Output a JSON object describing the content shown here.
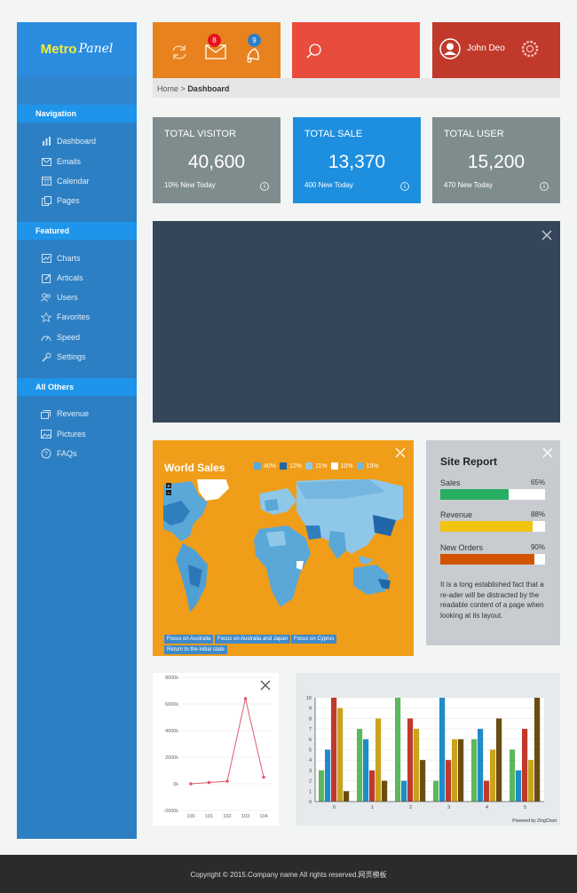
{
  "sidebar": {
    "logo": {
      "part1": "Metro",
      "part2": "Panel"
    },
    "sections": [
      {
        "label": "Navigation",
        "items": [
          {
            "label": "Dashboard",
            "icon": "bar-chart-icon"
          },
          {
            "label": "Emails",
            "icon": "envelope-icon"
          },
          {
            "label": "Calendar",
            "icon": "calendar-icon"
          },
          {
            "label": "Pages",
            "icon": "pages-icon"
          }
        ]
      },
      {
        "label": "Featured",
        "items": [
          {
            "label": "Charts",
            "icon": "chart-icon"
          },
          {
            "label": "Articals",
            "icon": "edit-icon"
          },
          {
            "label": "Users",
            "icon": "users-icon"
          },
          {
            "label": "Favorites",
            "icon": "star-icon"
          },
          {
            "label": "Speed",
            "icon": "speed-icon"
          },
          {
            "label": "Settings",
            "icon": "wrench-icon"
          }
        ]
      },
      {
        "label": "All Others",
        "items": [
          {
            "label": "Revenue",
            "icon": "stack-icon"
          },
          {
            "label": "Pictures",
            "icon": "picture-icon"
          },
          {
            "label": "FAQs",
            "icon": "question-icon"
          }
        ]
      }
    ]
  },
  "topbar": {
    "mail_badge": "8",
    "alert_badge": "9",
    "user_name": "John Deo",
    "colors": {
      "orange": "#e8821f",
      "red": "#e84c3d",
      "darkred": "#c0392b"
    }
  },
  "breadcrumb": {
    "home": "Home",
    "separator": ">",
    "current": "Dashboard"
  },
  "stats": [
    {
      "prefix": "TOTAL",
      "label": "VISITOR",
      "value": "40,600",
      "footer": "10% New Today",
      "color": "#7f8c8d"
    },
    {
      "prefix": "TOTAL",
      "label": "SALE",
      "value": "13,370",
      "footer": "400 New Today",
      "color": "#1e8fdf"
    },
    {
      "prefix": "TOTAL",
      "label": "USER",
      "value": "15,200",
      "footer": "470 New Today",
      "color": "#7f8c8d"
    }
  ],
  "world_sales": {
    "title": "World Sales",
    "legend": [
      "40%",
      "12%",
      "11%",
      "10%",
      "15%"
    ],
    "legend_colors": [
      "#5aa8d8",
      "#2166a8",
      "#8ec7e8",
      "#ffffff",
      "#74b6df"
    ],
    "buttons": [
      "Focus on Australia",
      "Focus on Australia and Japan",
      "Focus on Cyprus",
      "Return to the initial state"
    ]
  },
  "site_report": {
    "title": "Site Report",
    "items": [
      {
        "label": "Sales",
        "percent": "65%",
        "value": 65,
        "color": "#27ae60"
      },
      {
        "label": "Revenue",
        "percent": "88%",
        "value": 88,
        "color": "#f1c40f"
      },
      {
        "label": "New Orders",
        "percent": "90%",
        "value": 90,
        "color": "#d35400"
      }
    ],
    "text": "It is a long established fact that a re-ader will be distracted by the readable content of a page when looking at its layout."
  },
  "chart_data": [
    {
      "type": "line",
      "x": [
        "100",
        "101",
        "102",
        "103",
        "104"
      ],
      "values": [
        0,
        100,
        200,
        6400,
        500
      ],
      "yticks": [
        "8000k",
        "6000k",
        "4000k",
        "2000k",
        "0k",
        "-2000k"
      ],
      "ylim": [
        -2000,
        8000
      ],
      "color": "#e05a6d"
    },
    {
      "type": "bar",
      "categories": [
        "0",
        "1",
        "2",
        "3",
        "4",
        "5"
      ],
      "ylim": [
        0,
        10
      ],
      "yticks": [
        "10",
        "9",
        "8",
        "7",
        "6",
        "5",
        "4",
        "3",
        "2",
        "1",
        "0"
      ],
      "series": [
        {
          "color": "#5cb85c",
          "values": [
            3,
            7,
            10,
            2,
            6,
            5
          ]
        },
        {
          "color": "#1f8cc9",
          "values": [
            5,
            6,
            2,
            10,
            7,
            3
          ]
        },
        {
          "color": "#c0392b",
          "values": [
            10,
            3,
            8,
            4,
            2,
            7
          ]
        },
        {
          "color": "#c9a31c",
          "values": [
            9,
            8,
            7,
            6,
            5,
            4
          ]
        },
        {
          "color": "#6b4c12",
          "values": [
            1,
            2,
            4,
            6,
            8,
            10
          ]
        }
      ],
      "footer": "Powered by ZingChart"
    }
  ],
  "footer": {
    "copyright": "Copyright © 2015.Company name All rights reserved.网页模板"
  }
}
